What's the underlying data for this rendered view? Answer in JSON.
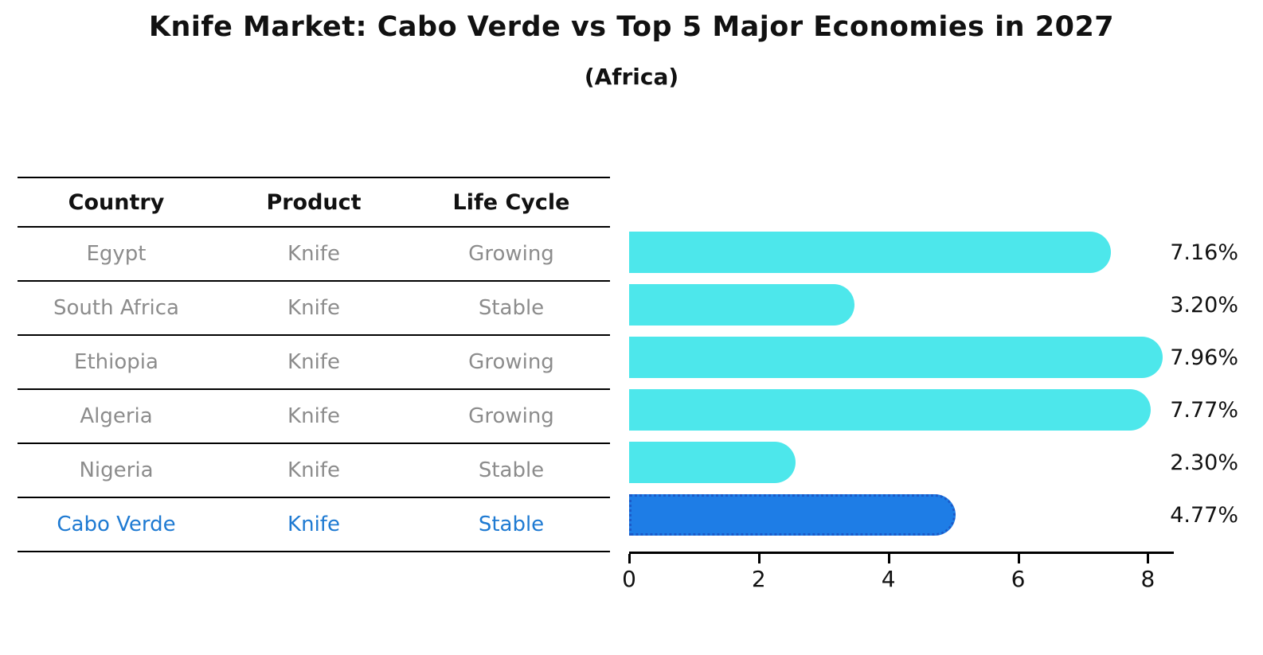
{
  "title": "Knife Market: Cabo Verde vs Top 5 Major Economies in 2027",
  "subtitle": "(Africa)",
  "table": {
    "headers": [
      "Country",
      "Product",
      "Life Cycle"
    ],
    "rows": [
      {
        "country": "Egypt",
        "product": "Knife",
        "life_cycle": "Growing",
        "highlight": false
      },
      {
        "country": "South Africa",
        "product": "Knife",
        "life_cycle": "Stable",
        "highlight": false
      },
      {
        "country": "Ethiopia",
        "product": "Knife",
        "life_cycle": "Growing",
        "highlight": false
      },
      {
        "country": "Algeria",
        "product": "Knife",
        "life_cycle": "Growing",
        "highlight": false
      },
      {
        "country": "Nigeria",
        "product": "Knife",
        "life_cycle": "Stable",
        "highlight": false
      },
      {
        "country": "Cabo Verde",
        "product": "Knife",
        "life_cycle": "Stable",
        "highlight": true
      }
    ]
  },
  "chart_data": {
    "type": "bar",
    "orientation": "horizontal",
    "title": "Knife Market: Cabo Verde vs Top 5 Major Economies in 2027",
    "subtitle": "(Africa)",
    "categories": [
      "Egypt",
      "South Africa",
      "Ethiopia",
      "Algeria",
      "Nigeria",
      "Cabo Verde"
    ],
    "values": [
      7.16,
      3.2,
      7.96,
      7.77,
      2.3,
      4.77
    ],
    "labels": [
      "7.16%",
      "3.20%",
      "7.96%",
      "7.77%",
      "2.30%",
      "4.77%"
    ],
    "xlabel": "",
    "ylabel": "",
    "xlim": [
      0,
      8.4
    ],
    "xticks": [
      0,
      2,
      4,
      6,
      8
    ],
    "grid": false,
    "legend": false,
    "highlight_index": 5,
    "colors": {
      "bar": "#4de7eb",
      "highlight_bar": "#1e7de6",
      "highlight_border": "#1b5ac8",
      "highlight_text": "#1e7ad2",
      "table_text": "#8c8c8c",
      "axis": "#000000",
      "value_text": "#111111"
    }
  }
}
